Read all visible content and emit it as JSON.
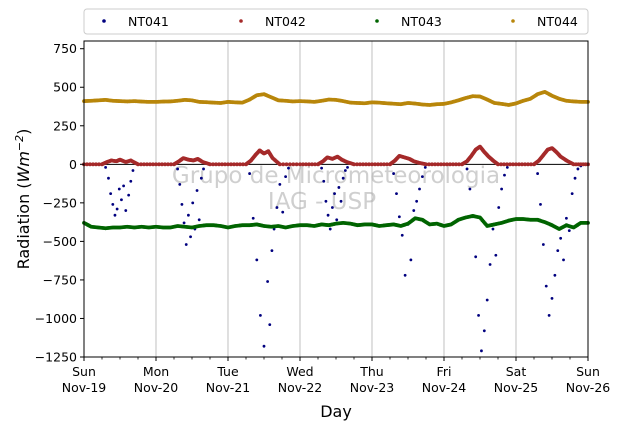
{
  "chart_data": {
    "type": "scatter",
    "title": "",
    "xlabel": "Day",
    "ylabel_prefix": "Radiation (",
    "ylabel_unit": "Wm",
    "ylabel_exp": "−2",
    "ylabel_suffix": ")",
    "ylim": [
      -1250,
      800
    ],
    "yticks": [
      -1250,
      -1000,
      -750,
      -500,
      -250,
      0,
      250,
      500,
      750
    ],
    "ytick_labels": [
      "−1250",
      "−1000",
      "−750",
      "−500",
      "−250",
      "0",
      "250",
      "500",
      "750"
    ],
    "xlim": [
      0,
      7
    ],
    "xticks": [
      0,
      1,
      2,
      3,
      4,
      5,
      6,
      7
    ],
    "xtick_labels": [
      [
        "Sun",
        "Nov-19"
      ],
      [
        "Mon",
        "Nov-20"
      ],
      [
        "Tue",
        "Nov-21"
      ],
      [
        "Wed",
        "Nov-22"
      ],
      [
        "Thu",
        "Nov-23"
      ],
      [
        "Fri",
        "Nov-24"
      ],
      [
        "Sat",
        "Nov-25"
      ],
      [
        "Sun",
        "Nov-26"
      ]
    ],
    "grid": "vertical",
    "zero_line": true,
    "legend_placement": "top",
    "watermark": [
      "Grupo de Micrometeorologia",
      "IAG - USP"
    ],
    "series": [
      {
        "name": "NT041",
        "color": "#00007f",
        "x": [
          0.3,
          0.34,
          0.37,
          0.4,
          0.43,
          0.46,
          0.49,
          0.52,
          0.55,
          0.58,
          0.62,
          0.65,
          0.68,
          1.3,
          1.33,
          1.36,
          1.39,
          1.42,
          1.45,
          1.48,
          1.51,
          1.54,
          1.57,
          1.6,
          1.63,
          1.66,
          2.3,
          2.35,
          2.4,
          2.45,
          2.5,
          2.55,
          2.58,
          2.61,
          2.64,
          2.68,
          2.72,
          2.76,
          2.8,
          2.84,
          3.3,
          3.33,
          3.36,
          3.39,
          3.42,
          3.45,
          3.48,
          3.51,
          3.54,
          3.57,
          3.6,
          3.63,
          3.66,
          4.3,
          4.34,
          4.38,
          4.42,
          4.46,
          4.5,
          4.54,
          4.58,
          4.62,
          4.66,
          4.7,
          4.74,
          5.32,
          5.36,
          5.4,
          5.44,
          5.48,
          5.52,
          5.56,
          5.6,
          5.64,
          5.68,
          5.72,
          5.76,
          5.8,
          5.84,
          5.88,
          6.3,
          6.34,
          6.38,
          6.42,
          6.46,
          6.5,
          6.54,
          6.58,
          6.62,
          6.66,
          6.7,
          6.74,
          6.78,
          6.82,
          6.86,
          6.9
        ],
        "y": [
          -20,
          -90,
          -190,
          -260,
          -330,
          -290,
          -160,
          -230,
          -140,
          -300,
          -200,
          -110,
          -40,
          -30,
          -130,
          -260,
          -380,
          -520,
          -330,
          -470,
          -250,
          -420,
          -170,
          -360,
          -90,
          -30,
          -60,
          -350,
          -620,
          -980,
          -1180,
          -760,
          -1040,
          -560,
          -420,
          -280,
          -130,
          -310,
          -80,
          -25,
          -25,
          -110,
          -240,
          -330,
          -420,
          -280,
          -190,
          -360,
          -150,
          -240,
          -90,
          -40,
          -20,
          -60,
          -190,
          -340,
          -460,
          -720,
          -390,
          -620,
          -300,
          -240,
          -160,
          -80,
          -20,
          -30,
          -160,
          -340,
          -600,
          -980,
          -1210,
          -1080,
          -880,
          -650,
          -420,
          -590,
          -280,
          -160,
          -70,
          -20,
          -60,
          -260,
          -520,
          -790,
          -980,
          -870,
          -720,
          -560,
          -480,
          -620,
          -350,
          -430,
          -190,
          -90,
          -30,
          -10
        ]
      },
      {
        "name": "NT042",
        "color": "#a52a2a",
        "x": [
          0.0,
          0.25,
          0.32,
          0.38,
          0.45,
          0.5,
          0.58,
          0.65,
          0.75,
          1.0,
          1.25,
          1.32,
          1.38,
          1.45,
          1.52,
          1.58,
          1.65,
          1.75,
          2.0,
          2.25,
          2.32,
          2.38,
          2.44,
          2.5,
          2.56,
          2.62,
          2.72,
          3.0,
          3.25,
          3.32,
          3.38,
          3.45,
          3.52,
          3.58,
          3.65,
          3.75,
          4.0,
          4.25,
          4.32,
          4.38,
          4.45,
          4.52,
          4.58,
          4.65,
          4.75,
          5.0,
          5.25,
          5.32,
          5.38,
          5.44,
          5.5,
          5.56,
          5.62,
          5.68,
          5.75,
          6.0,
          6.25,
          6.32,
          6.38,
          6.44,
          6.5,
          6.56,
          6.62,
          6.7,
          6.8,
          7.0
        ],
        "y": [
          0,
          0,
          15,
          25,
          20,
          30,
          15,
          25,
          0,
          0,
          0,
          20,
          40,
          30,
          25,
          35,
          15,
          0,
          0,
          0,
          25,
          60,
          90,
          70,
          85,
          40,
          0,
          0,
          0,
          20,
          45,
          35,
          50,
          30,
          15,
          0,
          0,
          0,
          25,
          55,
          45,
          35,
          20,
          10,
          0,
          0,
          0,
          20,
          55,
          95,
          115,
          80,
          50,
          25,
          0,
          0,
          0,
          25,
          60,
          95,
          105,
          80,
          50,
          25,
          0,
          0
        ]
      },
      {
        "name": "NT043",
        "color": "#006400",
        "x": [
          0.0,
          0.1,
          0.2,
          0.3,
          0.4,
          0.5,
          0.6,
          0.7,
          0.8,
          0.9,
          1.0,
          1.1,
          1.2,
          1.3,
          1.4,
          1.5,
          1.6,
          1.7,
          1.8,
          1.9,
          2.0,
          2.1,
          2.2,
          2.3,
          2.4,
          2.5,
          2.6,
          2.7,
          2.8,
          2.9,
          3.0,
          3.1,
          3.2,
          3.3,
          3.4,
          3.5,
          3.6,
          3.7,
          3.8,
          3.9,
          4.0,
          4.1,
          4.2,
          4.3,
          4.4,
          4.5,
          4.6,
          4.7,
          4.8,
          4.9,
          5.0,
          5.1,
          5.2,
          5.3,
          5.4,
          5.5,
          5.6,
          5.7,
          5.8,
          5.9,
          6.0,
          6.1,
          6.2,
          6.3,
          6.4,
          6.5,
          6.6,
          6.7,
          6.8,
          6.9,
          7.0
        ],
        "y": [
          -380,
          -405,
          -410,
          -415,
          -410,
          -410,
          -405,
          -410,
          -405,
          -410,
          -405,
          -410,
          -410,
          -400,
          -405,
          -410,
          -400,
          -395,
          -395,
          -400,
          -410,
          -400,
          -395,
          -395,
          -390,
          -400,
          -405,
          -400,
          -410,
          -400,
          -395,
          -395,
          -400,
          -390,
          -395,
          -385,
          -380,
          -385,
          -395,
          -390,
          -390,
          -400,
          -395,
          -390,
          -400,
          -385,
          -350,
          -360,
          -390,
          -385,
          -400,
          -390,
          -360,
          -345,
          -335,
          -345,
          -400,
          -390,
          -380,
          -365,
          -355,
          -355,
          -360,
          -360,
          -375,
          -395,
          -420,
          -395,
          -410,
          -380,
          -380
        ]
      },
      {
        "name": "NT044",
        "color": "#b8860b",
        "x": [
          0.0,
          0.1,
          0.2,
          0.3,
          0.4,
          0.5,
          0.6,
          0.7,
          0.8,
          0.9,
          1.0,
          1.1,
          1.2,
          1.3,
          1.4,
          1.5,
          1.6,
          1.7,
          1.8,
          1.9,
          2.0,
          2.1,
          2.2,
          2.3,
          2.4,
          2.5,
          2.6,
          2.7,
          2.8,
          2.9,
          3.0,
          3.1,
          3.2,
          3.3,
          3.4,
          3.5,
          3.6,
          3.7,
          3.8,
          3.9,
          4.0,
          4.1,
          4.2,
          4.3,
          4.4,
          4.5,
          4.6,
          4.7,
          4.8,
          4.9,
          5.0,
          5.1,
          5.2,
          5.3,
          5.4,
          5.5,
          5.6,
          5.7,
          5.8,
          5.9,
          6.0,
          6.1,
          6.2,
          6.3,
          6.4,
          6.5,
          6.6,
          6.7,
          6.8,
          6.9,
          7.0
        ],
        "y": [
          410,
          412,
          415,
          418,
          412,
          410,
          408,
          410,
          407,
          405,
          405,
          407,
          408,
          412,
          418,
          415,
          405,
          403,
          400,
          398,
          405,
          402,
          400,
          420,
          448,
          455,
          435,
          415,
          412,
          408,
          410,
          408,
          405,
          412,
          420,
          418,
          410,
          400,
          398,
          396,
          402,
          400,
          396,
          393,
          390,
          398,
          394,
          388,
          385,
          390,
          392,
          402,
          415,
          430,
          442,
          440,
          420,
          398,
          392,
          385,
          395,
          412,
          425,
          455,
          470,
          445,
          425,
          412,
          408,
          405,
          405
        ]
      }
    ]
  }
}
